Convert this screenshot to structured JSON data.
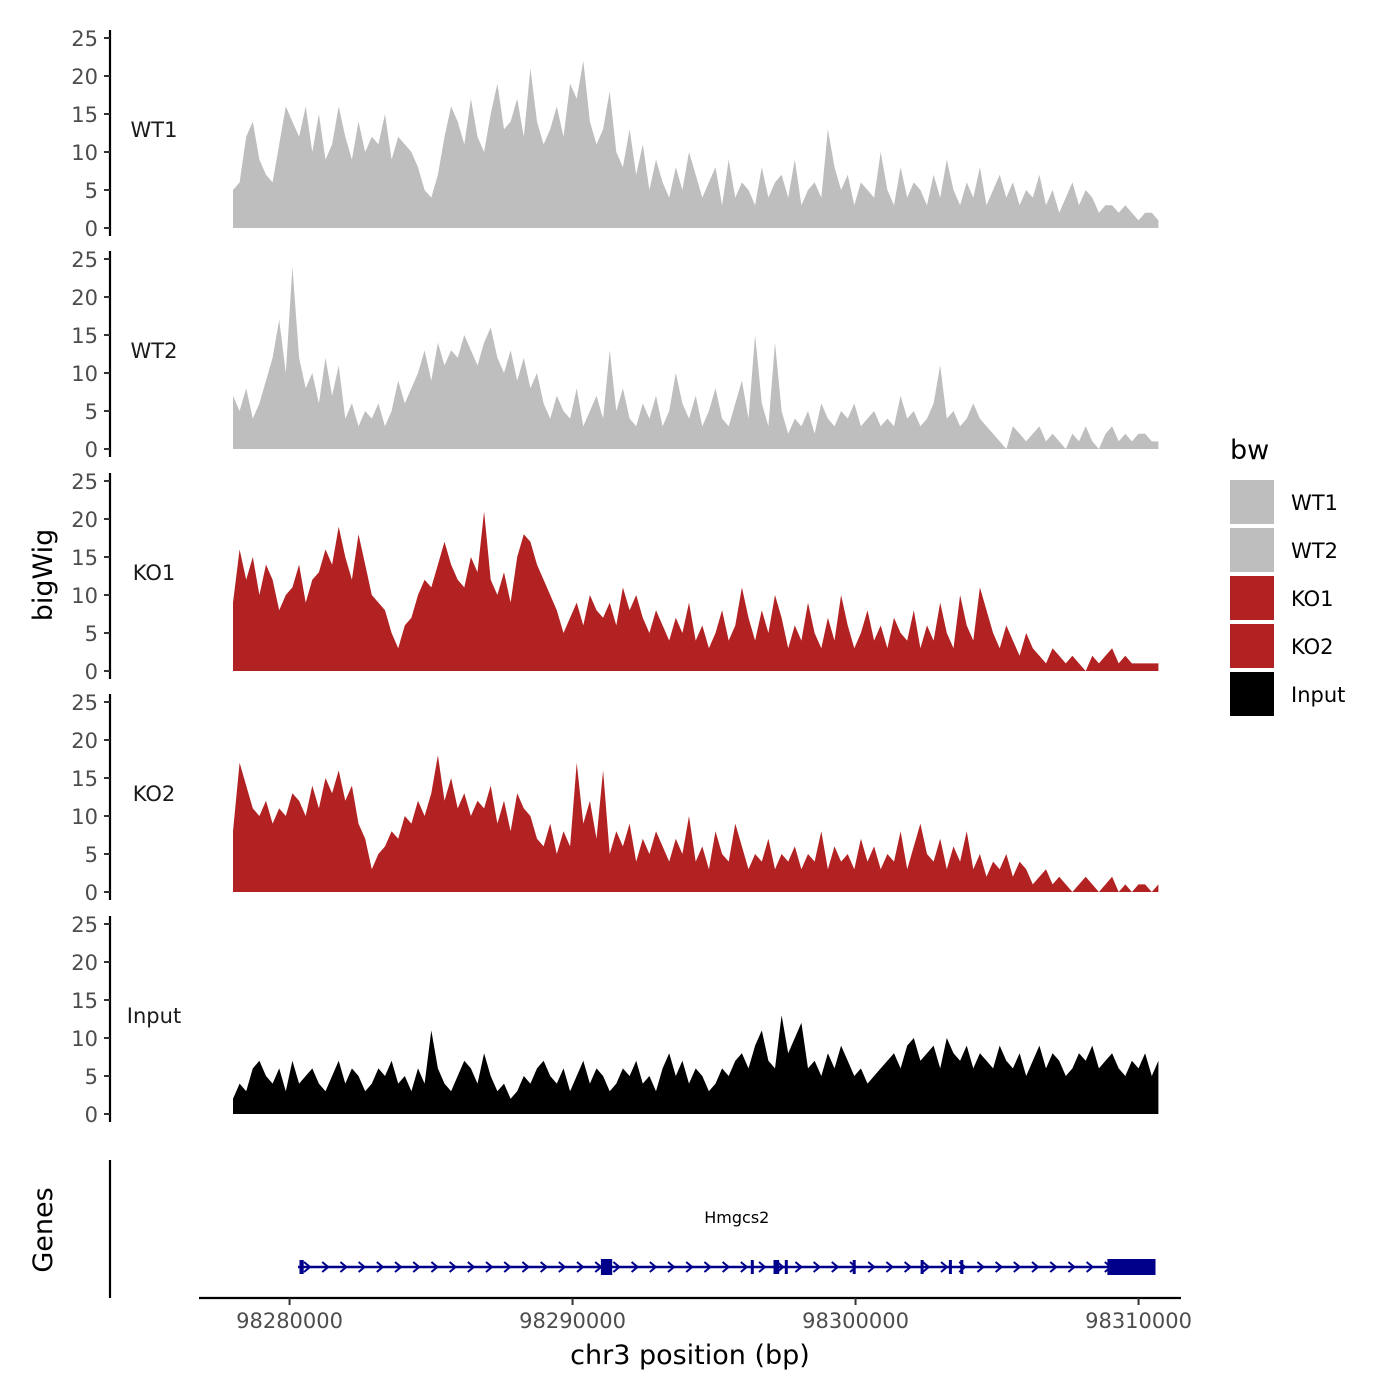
{
  "chart_data": {
    "type": "area",
    "ylabel": "bigWig",
    "xlabel": "chr3 position (bp)",
    "ylim": [
      0,
      25
    ],
    "yticks": [
      0,
      5,
      10,
      15,
      20,
      25
    ],
    "xlim": [
      98276800,
      98311500
    ],
    "xticks": [
      98280000,
      98290000,
      98300000,
      98310000
    ],
    "xtick_labels": [
      "98280000",
      "98290000",
      "98300000",
      "98310000"
    ],
    "legend": {
      "title": "bw",
      "position": "right",
      "entries": [
        {
          "label": "WT1",
          "color": "#bebebe"
        },
        {
          "label": "WT2",
          "color": "#bebebe"
        },
        {
          "label": "KO1",
          "color": "#b22222"
        },
        {
          "label": "KO2",
          "color": "#b22222"
        },
        {
          "label": "Input",
          "color": "#000000"
        }
      ]
    },
    "series": [
      {
        "name": "WT1",
        "color": "#bebebe",
        "x_start": 98278000,
        "x_end": 98310700,
        "values": [
          5,
          6,
          12,
          14,
          9,
          7,
          6,
          11,
          16,
          14,
          12,
          16,
          10,
          15,
          9,
          11,
          16,
          12,
          9,
          14,
          10,
          12,
          11,
          15,
          9,
          12,
          11,
          10,
          8,
          5,
          4,
          7,
          12,
          16,
          14,
          11,
          17,
          12,
          10,
          15,
          19,
          13,
          14,
          17,
          12,
          21,
          14,
          11,
          13,
          16,
          12,
          19,
          17,
          22,
          14,
          11,
          13,
          18,
          10,
          8,
          13,
          7,
          11,
          5,
          9,
          6,
          4,
          8,
          5,
          10,
          7,
          4,
          6,
          8,
          3,
          9,
          4,
          6,
          5,
          3,
          8,
          4,
          6,
          7,
          4,
          9,
          3,
          5,
          6,
          4,
          13,
          8,
          5,
          7,
          3,
          6,
          5,
          4,
          10,
          5,
          3,
          8,
          4,
          6,
          5,
          3,
          7,
          4,
          9,
          5,
          3,
          6,
          4,
          8,
          3,
          5,
          7,
          4,
          6,
          3,
          5,
          4,
          7,
          3,
          5,
          2,
          4,
          6,
          3,
          5,
          4,
          2,
          3,
          3,
          2,
          3,
          2,
          1,
          2,
          2,
          1
        ]
      },
      {
        "name": "WT2",
        "color": "#bebebe",
        "x_start": 98278000,
        "x_end": 98310700,
        "values": [
          7,
          5,
          8,
          4,
          6,
          9,
          12,
          17,
          10,
          24,
          12,
          8,
          10,
          6,
          12,
          7,
          11,
          4,
          6,
          3,
          5,
          4,
          6,
          3,
          5,
          9,
          6,
          8,
          10,
          13,
          9,
          14,
          11,
          13,
          12,
          15,
          13,
          11,
          14,
          16,
          12,
          10,
          13,
          9,
          12,
          8,
          10,
          6,
          4,
          7,
          5,
          4,
          8,
          3,
          5,
          7,
          4,
          13,
          5,
          8,
          4,
          3,
          6,
          4,
          7,
          3,
          5,
          10,
          6,
          4,
          7,
          3,
          5,
          8,
          4,
          3,
          6,
          9,
          4,
          15,
          6,
          3,
          14,
          5,
          2,
          4,
          3,
          5,
          2,
          6,
          4,
          3,
          5,
          4,
          6,
          3,
          4,
          5,
          3,
          4,
          3,
          7,
          4,
          5,
          3,
          4,
          6,
          11,
          4,
          5,
          3,
          4,
          6,
          4,
          3,
          2,
          1,
          0,
          3,
          2,
          1,
          2,
          3,
          1,
          2,
          1,
          0,
          2,
          1,
          3,
          1,
          0,
          2,
          3,
          1,
          2,
          1,
          2,
          2,
          1,
          1
        ]
      },
      {
        "name": "KO1",
        "color": "#b22222",
        "x_start": 98278000,
        "x_end": 98310700,
        "values": [
          9,
          16,
          12,
          15,
          10,
          14,
          12,
          8,
          10,
          11,
          14,
          9,
          12,
          13,
          16,
          14,
          19,
          15,
          12,
          18,
          14,
          10,
          9,
          8,
          5,
          3,
          6,
          7,
          10,
          12,
          11,
          14,
          17,
          14,
          12,
          11,
          15,
          13,
          21,
          12,
          10,
          13,
          9,
          15,
          18,
          17,
          14,
          12,
          10,
          8,
          5,
          7,
          9,
          6,
          10,
          8,
          7,
          9,
          6,
          11,
          8,
          10,
          7,
          5,
          8,
          6,
          4,
          7,
          5,
          9,
          4,
          6,
          3,
          5,
          8,
          4,
          6,
          11,
          7,
          4,
          8,
          5,
          10,
          7,
          3,
          6,
          4,
          9,
          5,
          3,
          7,
          4,
          10,
          6,
          3,
          5,
          8,
          4,
          6,
          3,
          7,
          5,
          4,
          8,
          3,
          6,
          4,
          9,
          5,
          3,
          10,
          6,
          4,
          11,
          8,
          5,
          3,
          6,
          4,
          2,
          5,
          3,
          2,
          1,
          3,
          2,
          1,
          2,
          1,
          0,
          2,
          1,
          2,
          3,
          1,
          2,
          1,
          1,
          1,
          1,
          1
        ]
      },
      {
        "name": "KO2",
        "color": "#b22222",
        "x_start": 98278000,
        "x_end": 98310700,
        "values": [
          8,
          17,
          14,
          11,
          10,
          12,
          9,
          11,
          10,
          13,
          12,
          10,
          14,
          11,
          15,
          13,
          16,
          12,
          14,
          9,
          7,
          3,
          5,
          6,
          8,
          7,
          10,
          9,
          12,
          10,
          13,
          18,
          12,
          15,
          11,
          13,
          10,
          12,
          11,
          14,
          9,
          12,
          8,
          13,
          11,
          10,
          7,
          6,
          9,
          5,
          8,
          6,
          17,
          9,
          12,
          7,
          16,
          5,
          8,
          6,
          9,
          4,
          7,
          5,
          8,
          6,
          4,
          7,
          5,
          10,
          4,
          6,
          3,
          8,
          5,
          4,
          9,
          6,
          3,
          5,
          4,
          7,
          3,
          5,
          4,
          6,
          3,
          5,
          4,
          8,
          3,
          6,
          4,
          5,
          3,
          7,
          4,
          6,
          3,
          5,
          4,
          8,
          3,
          6,
          9,
          5,
          4,
          7,
          3,
          6,
          4,
          8,
          3,
          5,
          2,
          4,
          3,
          5,
          2,
          4,
          3,
          1,
          2,
          3,
          1,
          2,
          1,
          0,
          1,
          2,
          1,
          0,
          1,
          2,
          0,
          1,
          0,
          1,
          1,
          0,
          1
        ]
      },
      {
        "name": "Input",
        "color": "#000000",
        "x_start": 98278000,
        "x_end": 98310700,
        "values": [
          2,
          4,
          3,
          6,
          7,
          5,
          4,
          6,
          3,
          7,
          4,
          5,
          6,
          4,
          3,
          5,
          7,
          4,
          6,
          5,
          3,
          4,
          6,
          5,
          7,
          4,
          5,
          3,
          6,
          4,
          11,
          6,
          4,
          3,
          5,
          7,
          6,
          4,
          8,
          5,
          3,
          4,
          2,
          3,
          5,
          4,
          6,
          7,
          5,
          4,
          6,
          3,
          5,
          7,
          4,
          6,
          5,
          3,
          4,
          6,
          5,
          7,
          4,
          5,
          3,
          6,
          8,
          5,
          7,
          4,
          6,
          5,
          3,
          4,
          6,
          5,
          7,
          8,
          6,
          9,
          11,
          7,
          6,
          13,
          8,
          10,
          12,
          6,
          7,
          5,
          8,
          6,
          9,
          7,
          5,
          6,
          4,
          5,
          6,
          7,
          8,
          6,
          9,
          10,
          7,
          8,
          9,
          6,
          10,
          8,
          7,
          9,
          6,
          8,
          7,
          6,
          9,
          7,
          6,
          8,
          5,
          7,
          9,
          6,
          8,
          7,
          5,
          6,
          8,
          7,
          9,
          6,
          7,
          8,
          6,
          5,
          7,
          6,
          8,
          5,
          7
        ]
      }
    ],
    "genes": [
      {
        "name": "Hmgcs2",
        "strand": "+",
        "start": 98280300,
        "end": 98310600,
        "color": "#00008b",
        "exons": [
          [
            98280350,
            98280500
          ],
          [
            98291000,
            98291400
          ],
          [
            98296300,
            98296400
          ],
          [
            98297100,
            98297300
          ],
          [
            98297500,
            98297600
          ],
          [
            98299900,
            98300000
          ],
          [
            98302300,
            98302400
          ],
          [
            98303300,
            98303400
          ],
          [
            98303700,
            98303800
          ],
          [
            98308900,
            98310600
          ]
        ]
      }
    ],
    "gene_track_label": "Genes"
  }
}
